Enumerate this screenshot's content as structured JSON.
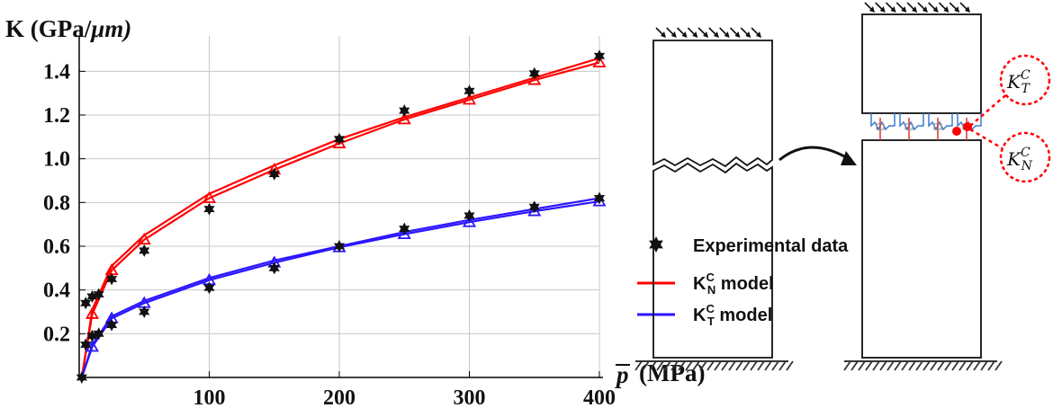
{
  "chart_data": {
    "type": "line",
    "ylabel_main": "K (GPa/",
    "ylabel_unit": "μm)",
    "ylabel_close": "",
    "xlabel_symbol": "p",
    "xlabel_unit": "(MPa)",
    "xlim": [
      0,
      400
    ],
    "ylim": [
      0,
      1.5
    ],
    "xticks": [
      100,
      200,
      300,
      400
    ],
    "yticks": [
      0.2,
      0.4,
      0.6,
      0.8,
      1.0,
      1.2,
      1.4
    ],
    "ytick_labels": [
      "0.2",
      "0.4",
      "0.6",
      "0.8",
      "1.0",
      "1.2",
      "1.4"
    ],
    "xtick_labels": [
      "100",
      "200",
      "300",
      "400"
    ],
    "grid": true,
    "legend_position": "right-middle",
    "series": [
      {
        "name": "Experimental data",
        "marker": "star",
        "color": "#000000",
        "x": [
          2,
          5,
          5,
          10,
          10,
          15,
          15,
          25,
          25,
          50,
          50,
          100,
          100,
          150,
          150,
          200,
          200,
          250,
          250,
          300,
          300,
          350,
          350,
          400,
          400
        ],
        "y": [
          0.0,
          0.15,
          0.34,
          0.19,
          0.37,
          0.2,
          0.38,
          0.24,
          0.45,
          0.3,
          0.58,
          0.41,
          0.77,
          0.5,
          0.93,
          0.6,
          1.09,
          0.68,
          1.22,
          0.74,
          1.31,
          0.78,
          1.39,
          0.82,
          1.47
        ]
      },
      {
        "name": "KCN model",
        "legend_base": "K",
        "legend_sup": "C",
        "legend_sub": "N",
        "legend_tail": " model",
        "color": "#ff0000",
        "x": [
          2,
          10,
          25,
          50,
          100,
          150,
          200,
          250,
          300,
          350,
          400
        ],
        "y": [
          0.0,
          0.31,
          0.51,
          0.65,
          0.84,
          0.97,
          1.09,
          1.19,
          1.28,
          1.37,
          1.46
        ],
        "y2": [
          0.0,
          0.29,
          0.49,
          0.63,
          0.82,
          0.95,
          1.07,
          1.18,
          1.27,
          1.36,
          1.44
        ]
      },
      {
        "name": "KCT model",
        "legend_base": "K",
        "legend_sup": "C",
        "legend_sub": "T",
        "legend_tail": " model",
        "color": "#2b16ff",
        "x": [
          2,
          10,
          25,
          50,
          100,
          150,
          200,
          250,
          300,
          350,
          400
        ],
        "y": [
          0.0,
          0.15,
          0.28,
          0.35,
          0.455,
          0.535,
          0.6,
          0.665,
          0.72,
          0.77,
          0.82
        ],
        "y2": [
          0.0,
          0.14,
          0.27,
          0.34,
          0.445,
          0.525,
          0.595,
          0.655,
          0.71,
          0.76,
          0.805
        ]
      }
    ]
  },
  "diagram": {
    "normal_stiffness": {
      "base": "K",
      "sup": "C",
      "sub": "N"
    },
    "tangential_stiffness": {
      "base": "K",
      "sup": "C",
      "sub": "T"
    },
    "colors": {
      "ground": "#333333",
      "spring_blue": "#3a7bd5",
      "spring_red": "#e0302a",
      "contact_dot": "#ff0000"
    }
  }
}
